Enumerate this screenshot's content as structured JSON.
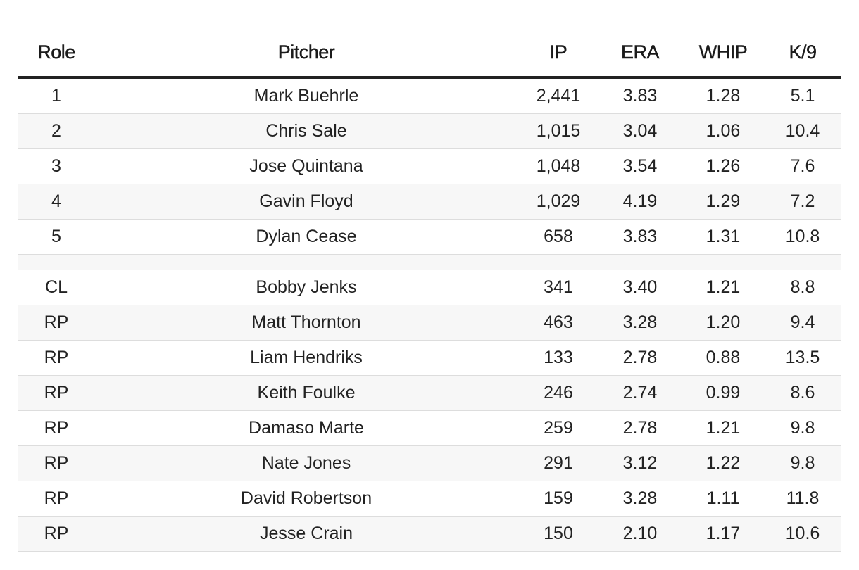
{
  "table": {
    "headers": [
      "Role",
      "Pitcher",
      "IP",
      "ERA",
      "WHIP",
      "K/9"
    ],
    "rows": [
      [
        "1",
        "Mark Buehrle",
        "2,441",
        "3.83",
        "1.28",
        "5.1"
      ],
      [
        "2",
        "Chris Sale",
        "1,015",
        "3.04",
        "1.06",
        "10.4"
      ],
      [
        "3",
        "Jose Quintana",
        "1,048",
        "3.54",
        "1.26",
        "7.6"
      ],
      [
        "4",
        "Gavin Floyd",
        "1,029",
        "4.19",
        "1.29",
        "7.2"
      ],
      [
        "5",
        "Dylan Cease",
        "658",
        "3.83",
        "1.31",
        "10.8"
      ],
      [
        "",
        "",
        "",
        "",
        "",
        ""
      ],
      [
        "CL",
        "Bobby Jenks",
        "341",
        "3.40",
        "1.21",
        "8.8"
      ],
      [
        "RP",
        "Matt Thornton",
        "463",
        "3.28",
        "1.20",
        "9.4"
      ],
      [
        "RP",
        "Liam Hendriks",
        "133",
        "2.78",
        "0.88",
        "13.5"
      ],
      [
        "RP",
        "Keith Foulke",
        "246",
        "2.74",
        "0.99",
        "8.6"
      ],
      [
        "RP",
        "Damaso Marte",
        "259",
        "2.78",
        "1.21",
        "9.8"
      ],
      [
        "RP",
        "Nate Jones",
        "291",
        "3.12",
        "1.22",
        "9.8"
      ],
      [
        "RP",
        "David Robertson",
        "159",
        "3.28",
        "1.11",
        "11.8"
      ],
      [
        "RP",
        "Jesse Crain",
        "150",
        "2.10",
        "1.17",
        "10.6"
      ]
    ]
  }
}
